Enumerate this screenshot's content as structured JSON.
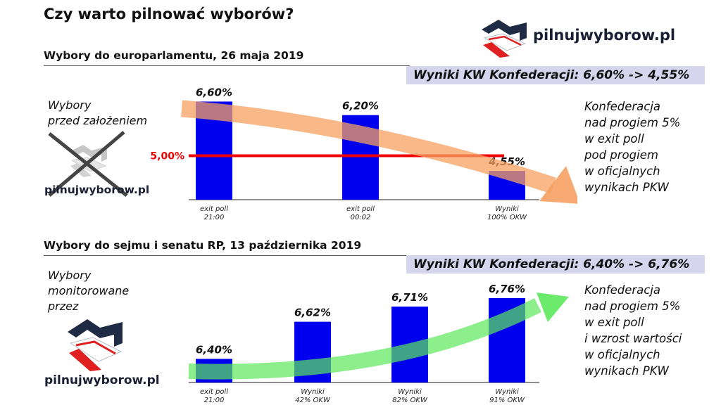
{
  "title": "Czy warto pilnować wyborów?",
  "logo_text": "pilnujwyborow.pl",
  "sections": [
    {
      "subtitle": "Wybory do europarlamentu, 26 maja  2019",
      "result_label": "Wyniki KW Konfederacji:   6,60% -> 4,55%",
      "left_note": [
        "Wybory",
        "przed założeniem"
      ],
      "right_note": [
        "Konfederacja",
        "nad progiem 5%",
        "w exit poll",
        "pod progiem",
        "w oficjalnych",
        "wynikach PKW"
      ]
    },
    {
      "subtitle": "Wybory do sejmu i senatu RP, 13 października  2019",
      "result_label": "Wyniki KW Konfederacji:   6,40% -> 6,76%",
      "left_note": [
        "Wybory",
        "monitorowane",
        "przez"
      ],
      "right_note": [
        "Konfederacja",
        "nad progiem 5%",
        "w exit poll",
        "i wzrost wartości",
        "w oficjalnych",
        "wynikach PKW"
      ]
    }
  ],
  "colors": {
    "bar": "#0000ee",
    "threshold": "#ee0000",
    "arrow_down": "#f5a060",
    "arrow_up": "#5be85b",
    "box": "#d6d5ee",
    "logo_navy": "#1f2a44",
    "logo_red": "#e02020"
  },
  "chart_data": [
    {
      "type": "bar",
      "categories": [
        [
          "exit poll",
          "21:00"
        ],
        [
          "exit poll",
          "00:02"
        ],
        [
          "Wyniki",
          "100% OKW"
        ]
      ],
      "values": [
        6.6,
        6.2,
        4.55
      ],
      "value_labels": [
        "6,60%",
        "6,20%",
        "4,55%"
      ],
      "threshold": {
        "value": 5.0,
        "label": "5,00%"
      },
      "ylim": [
        3.7,
        6.9
      ],
      "trend": "down"
    },
    {
      "type": "bar",
      "categories": [
        [
          "exit poll",
          "21:00"
        ],
        [
          "Wyniki",
          "42% OKW"
        ],
        [
          "Wyniki",
          "82% OKW"
        ],
        [
          "Wyniki",
          "91% OKW"
        ]
      ],
      "values": [
        6.4,
        6.62,
        6.71,
        6.76
      ],
      "value_labels": [
        "6,40%",
        "6,62%",
        "6,71%",
        "6,76%"
      ],
      "ylim": [
        6.26,
        6.86
      ],
      "trend": "up"
    }
  ]
}
